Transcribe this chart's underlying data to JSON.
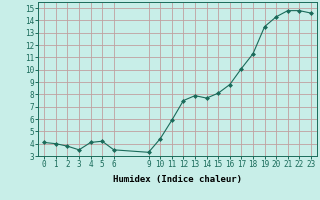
{
  "x": [
    0,
    1,
    2,
    3,
    4,
    5,
    6,
    9,
    10,
    11,
    12,
    13,
    14,
    15,
    16,
    17,
    18,
    19,
    20,
    21,
    22,
    23
  ],
  "y": [
    4.1,
    4.0,
    3.8,
    3.5,
    4.1,
    4.2,
    3.5,
    3.3,
    4.4,
    5.9,
    7.5,
    7.9,
    7.7,
    8.1,
    8.8,
    10.1,
    11.3,
    13.5,
    14.3,
    14.8,
    14.8,
    14.6
  ],
  "line_color": "#1a6b5a",
  "marker_color": "#1a6b5a",
  "bg_color": "#c8eee8",
  "grid_major_color": "#c0a0a0",
  "grid_minor_color": "#d8e8e4",
  "xlabel": "Humidex (Indice chaleur)",
  "xlim": [
    -0.5,
    23.5
  ],
  "ylim": [
    3,
    15.5
  ],
  "xticks": [
    0,
    1,
    2,
    3,
    4,
    5,
    6,
    9,
    10,
    11,
    12,
    13,
    14,
    15,
    16,
    17,
    18,
    19,
    20,
    21,
    22,
    23
  ],
  "yticks": [
    3,
    4,
    5,
    6,
    7,
    8,
    9,
    10,
    11,
    12,
    13,
    14,
    15
  ],
  "xlabel_fontsize": 6.5,
  "tick_fontsize": 5.5
}
